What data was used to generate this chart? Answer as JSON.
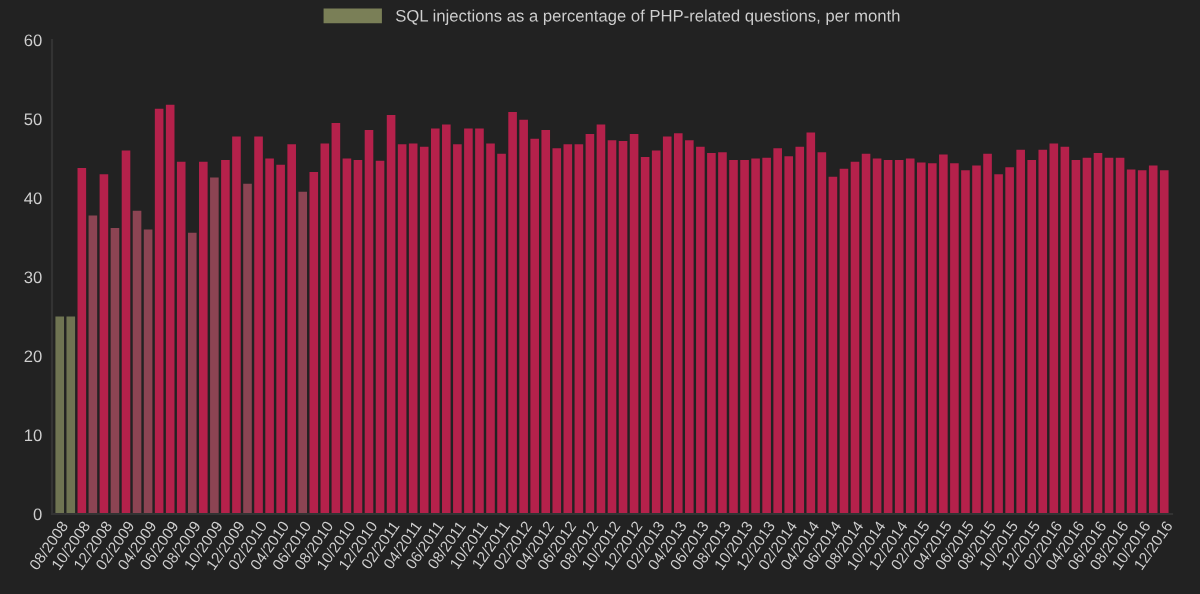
{
  "chart_data": {
    "type": "bar",
    "categories": [
      "08/2008",
      null,
      "10/2008",
      null,
      "12/2008",
      null,
      "02/2009",
      null,
      "04/2009",
      null,
      "06/2009",
      null,
      "08/2009",
      null,
      "10/2009",
      null,
      "12/2009",
      null,
      "02/2010",
      null,
      "04/2010",
      null,
      "06/2010",
      null,
      "08/2010",
      null,
      "10/2010",
      null,
      "12/2010",
      null,
      "02/2011",
      null,
      "04/2011",
      null,
      "06/2011",
      null,
      "08/2011",
      null,
      "10/2011",
      null,
      "12/2011",
      null,
      "02/2012",
      null,
      "04/2012",
      null,
      "06/2012",
      null,
      "08/2012",
      null,
      "10/2012",
      null,
      "12/2012",
      null,
      "02/2013",
      null,
      "04/2013",
      null,
      "06/2013",
      null,
      "08/2013",
      null,
      "10/2013",
      null,
      "12/2013",
      null,
      "02/2014",
      null,
      "04/2014",
      null,
      "06/2014",
      null,
      "08/2014",
      null,
      "10/2014",
      null,
      "12/2014",
      null,
      "02/2015",
      null,
      "04/2015",
      null,
      "06/2015",
      null,
      "08/2015",
      null,
      "10/2015",
      null,
      "12/2015",
      null,
      "02/2016",
      null,
      "04/2016",
      null,
      "06/2016",
      null,
      "08/2016",
      null,
      "10/2016",
      null,
      "12/2016"
    ],
    "series": [
      {
        "name": "SQL injections as a percentage of PHP-related questions, per month",
        "color": "#7a7f57",
        "values": [
          25,
          25,
          43.8,
          37.8,
          43,
          36.2,
          46,
          38.4,
          36,
          51.3,
          51.8,
          44.6,
          35.6,
          44.6,
          42.6,
          44.8,
          47.8,
          41.8,
          47.8,
          45,
          44.2,
          46.8,
          40.8,
          43.3,
          46.9,
          49.5,
          45,
          44.8,
          48.6,
          44.7,
          50.5,
          46.8,
          46.9,
          46.5,
          48.8,
          49.3,
          46.8,
          48.8,
          48.8,
          46.9,
          45.6,
          50.9,
          49.9,
          47.5,
          48.6,
          46.3,
          46.8,
          46.8,
          48.1,
          49.3,
          47.3,
          47.2,
          48.1,
          45.2,
          46,
          47.8,
          48.2,
          47.3,
          46.5,
          45.7,
          45.8,
          44.8,
          44.8,
          45,
          45.1,
          46.3,
          45.3,
          46.5,
          48.3,
          45.8,
          42.7,
          43.7,
          44.6,
          45.6,
          45,
          44.8,
          44.8,
          45,
          44.5,
          44.4,
          45.5,
          44.4,
          43.5,
          44.1,
          45.6,
          43,
          43.9,
          46.1,
          44.8,
          46.1,
          46.9,
          46.5,
          44.8,
          45.1,
          45.7,
          45.1,
          45.1,
          43.6,
          43.5,
          44.1,
          43.5
        ],
        "colors": [
          "#6f7452",
          "#6f7452",
          "#b5214b",
          "#8c4453",
          "#b5214b",
          "#8c4453",
          "#b5214b",
          "#8c4453",
          "#8c4453",
          "#b5214b",
          "#b5214b",
          "#b5214b",
          "#8c4453",
          "#b5214b",
          "#8c4453",
          "#b5214b",
          "#b5214b",
          "#8c4453",
          "#b5214b",
          "#b5214b",
          "#b5214b",
          "#b5214b",
          "#8c4453",
          "#b5214b",
          "#b5214b",
          "#b5214b",
          "#b5214b",
          "#b5214b",
          "#b5214b",
          "#b5214b",
          "#b5214b",
          "#b5214b",
          "#b5214b",
          "#b5214b",
          "#b5214b",
          "#b5214b",
          "#b5214b",
          "#b5214b",
          "#b5214b",
          "#b5214b",
          "#b5214b",
          "#b5214b",
          "#b5214b",
          "#b5214b",
          "#b5214b",
          "#b5214b",
          "#b5214b",
          "#b5214b",
          "#b5214b",
          "#b5214b",
          "#b5214b",
          "#b5214b",
          "#b5214b",
          "#b5214b",
          "#b5214b",
          "#b5214b",
          "#b5214b",
          "#b5214b",
          "#b5214b",
          "#b5214b",
          "#b5214b",
          "#b5214b",
          "#b5214b",
          "#b5214b",
          "#b5214b",
          "#b5214b",
          "#b5214b",
          "#b5214b",
          "#b5214b",
          "#b5214b",
          "#b5214b",
          "#b5214b",
          "#b5214b",
          "#b5214b",
          "#b5214b",
          "#b5214b",
          "#b5214b",
          "#b5214b",
          "#b5214b",
          "#b5214b",
          "#b5214b",
          "#b5214b",
          "#b5214b",
          "#b5214b",
          "#b5214b",
          "#b5214b",
          "#b5214b",
          "#b5214b",
          "#b5214b",
          "#b5214b",
          "#b5214b",
          "#b5214b",
          "#b5214b",
          "#b5214b",
          "#b5214b",
          "#b5214b",
          "#b5214b",
          "#b5214b",
          "#b5214b",
          "#b5214b",
          "#b5214b"
        ]
      }
    ],
    "ylim": [
      0,
      60
    ],
    "yticks": [
      0,
      10,
      20,
      30,
      40,
      50,
      60
    ],
    "grid": false,
    "legend": "top"
  }
}
